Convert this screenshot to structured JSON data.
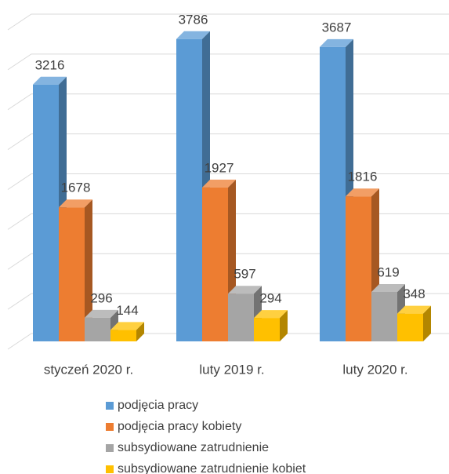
{
  "chart_data": {
    "type": "bar3d",
    "categories": [
      "styczeń 2020 r.",
      "luty 2019 r.",
      "luty 2020 r."
    ],
    "series": [
      {
        "name": "podjęcia pracy",
        "color": "#5b9bd5",
        "values": [
          3216,
          3786,
          3687
        ]
      },
      {
        "name": "podjęcia pracy kobiety",
        "color": "#ed7d31",
        "values": [
          1678,
          1927,
          1816
        ]
      },
      {
        "name": "subsydiowane zatrudnienie",
        "color": "#a5a5a5",
        "values": [
          296,
          597,
          619
        ]
      },
      {
        "name": "subsydiowane zatrudnienie kobiet",
        "color": "#ffc000",
        "values": [
          144,
          294,
          348
        ]
      }
    ],
    "ylim": [
      0,
      4000
    ],
    "yticks": [
      0,
      500,
      1000,
      1500,
      2000,
      2500,
      3000,
      3500,
      4000
    ],
    "grid": true,
    "legend": "bottom"
  }
}
